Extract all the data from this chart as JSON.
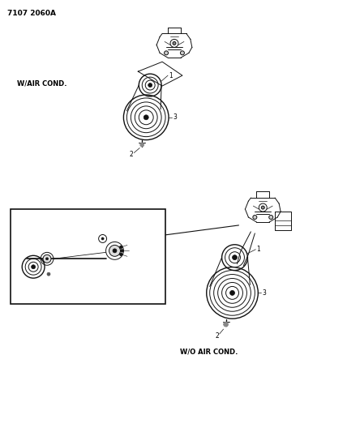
{
  "title_text": "7107 2060A",
  "background_color": "#ffffff",
  "label_wair": "W/AIR COND.",
  "label_woair": "W/O AIR COND.",
  "font_color": "#000000",
  "line_color": "#000000",
  "img_color": "#111111",
  "lw_main": 0.7,
  "lw_thick": 1.0,
  "fontsize_label": 5.5,
  "fontsize_title": 6.5,
  "fontsize_caption": 6.0
}
